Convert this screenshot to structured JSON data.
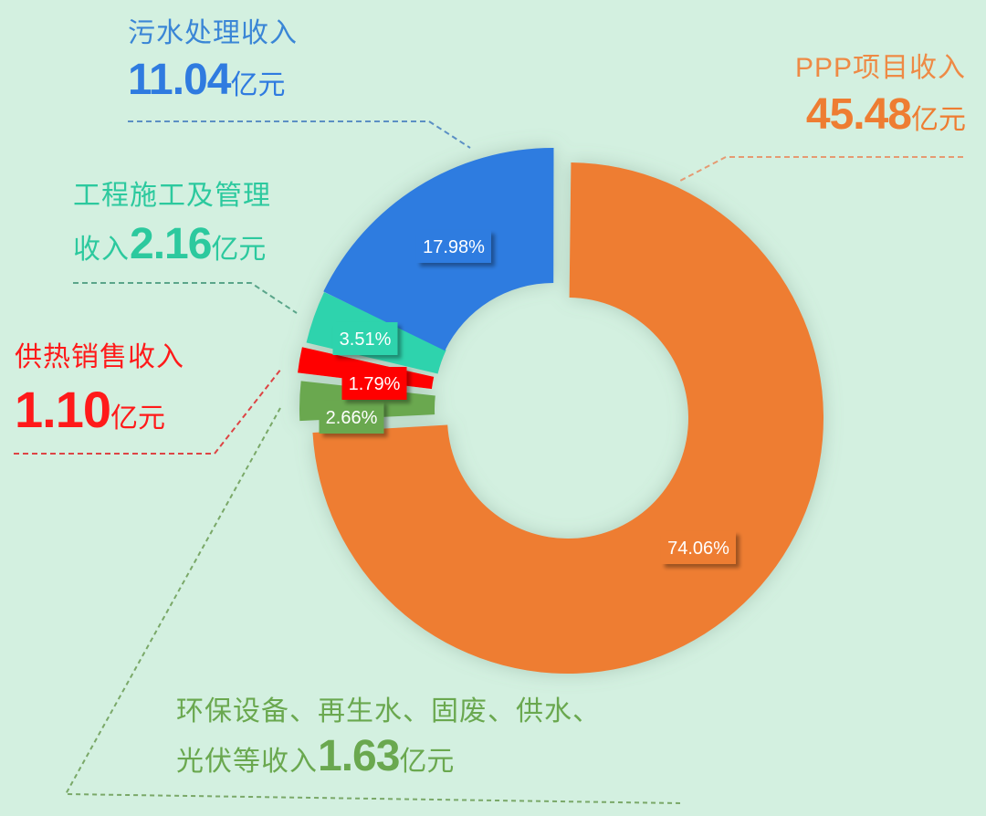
{
  "chart_data": {
    "type": "pie",
    "variant": "donut",
    "title": "",
    "unit": "亿元",
    "categories": [
      "PPP项目收入",
      "环保设备、再生水、固废、供水、光伏等收入",
      "供热销售收入",
      "工程施工及管理收入",
      "污水处理收入"
    ],
    "values": [
      45.48,
      1.63,
      1.1,
      2.16,
      11.04
    ],
    "percentages": [
      74.06,
      2.66,
      1.79,
      3.51,
      17.98
    ],
    "percent_labels": [
      "74.06%",
      "2.66%",
      "1.79%",
      "3.51%",
      "17.98%"
    ],
    "colors": [
      "#ee7d32",
      "#6aa84f",
      "#ff0000",
      "#2fd3ad",
      "#2f7be0"
    ],
    "legend_position": "callouts"
  },
  "callouts": {
    "ppp": {
      "name": "PPP项目收入",
      "value": "45.48",
      "unit": "亿元",
      "color": "#ee7d32"
    },
    "sewage": {
      "name": "污水处理收入",
      "value": "11.04",
      "unit": "亿元",
      "color": "#2f7be0"
    },
    "engineering": {
      "name_line1": "工程施工及管理",
      "name_line2": "收入",
      "value": "2.16",
      "unit": "亿元",
      "color": "#2fd3ad"
    },
    "heating": {
      "name": "供热销售收入",
      "value": "1.10",
      "unit": "亿元",
      "color": "#ff1a1a"
    },
    "other": {
      "name_line1": "环保设备、再生水、固废、供水、",
      "name_line2": "光伏等收入",
      "value": "1.63",
      "unit": "亿元",
      "color": "#6aa84f"
    }
  },
  "colors": {
    "background": "#d3f0e0"
  }
}
